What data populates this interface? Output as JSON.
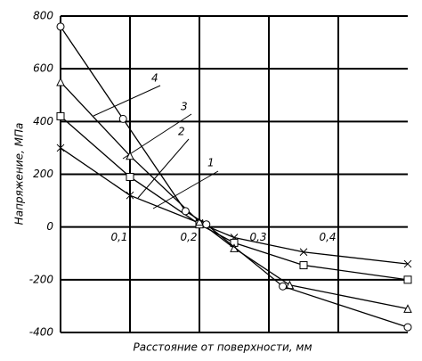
{
  "chart_data": {
    "type": "line",
    "xlabel": "Расстояние от поверхности, мм",
    "ylabel": "Напряжение, МПа",
    "xlim": [
      0,
      0.5
    ],
    "ylim": [
      -400,
      800
    ],
    "xticks": [
      {
        "value": 0.1,
        "label": "0,1"
      },
      {
        "value": 0.2,
        "label": "0,2"
      },
      {
        "value": 0.3,
        "label": "0,3"
      },
      {
        "value": 0.4,
        "label": "0,4"
      }
    ],
    "yticks": [
      -400,
      -200,
      0,
      200,
      400,
      600,
      800
    ],
    "grid": true,
    "series": [
      {
        "name": "1",
        "marker": "x",
        "color": "#000000",
        "x": [
          0,
          0.1,
          0.2,
          0.25,
          0.35,
          0.5
        ],
        "values": [
          300,
          120,
          15,
          -40,
          -95,
          -140
        ]
      },
      {
        "name": "2",
        "marker": "square",
        "color": "#000000",
        "x": [
          0,
          0.1,
          0.2,
          0.25,
          0.35,
          0.5
        ],
        "values": [
          420,
          190,
          10,
          -60,
          -145,
          -200
        ]
      },
      {
        "name": "3",
        "marker": "triangle",
        "color": "#000000",
        "x": [
          0,
          0.1,
          0.2,
          0.25,
          0.33,
          0.5
        ],
        "values": [
          550,
          270,
          20,
          -80,
          -220,
          -310
        ]
      },
      {
        "name": "4",
        "marker": "circle",
        "color": "#000000",
        "x": [
          0,
          0.09,
          0.18,
          0.21,
          0.32,
          0.5
        ],
        "values": [
          760,
          410,
          60,
          10,
          -225,
          -380
        ]
      }
    ]
  }
}
